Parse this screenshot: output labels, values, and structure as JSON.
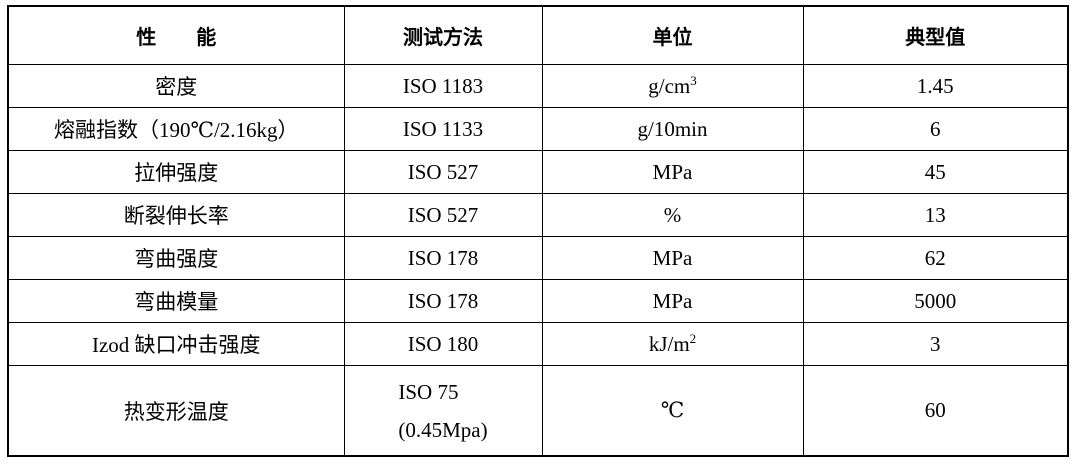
{
  "table": {
    "headers": [
      "性　　能",
      "测试方法",
      "单位",
      "典型值"
    ],
    "rows": [
      {
        "property": "密度",
        "method": "ISO 1183",
        "unit": "g/cm",
        "unit_sup": "3",
        "value": "1.45"
      },
      {
        "property": "熔融指数（190℃/2.16kg）",
        "method": "ISO 1133",
        "unit": "g/10min",
        "unit_sup": "",
        "value": "6"
      },
      {
        "property": "拉伸强度",
        "method": "ISO 527",
        "unit": "MPa",
        "unit_sup": "",
        "value": "45"
      },
      {
        "property": "断裂伸长率",
        "method": "ISO 527",
        "unit": "%",
        "unit_sup": "",
        "value": "13"
      },
      {
        "property": "弯曲强度",
        "method": "ISO 178",
        "unit": "MPa",
        "unit_sup": "",
        "value": "62"
      },
      {
        "property": "弯曲模量",
        "method": "ISO 178",
        "unit": "MPa",
        "unit_sup": "",
        "value": "5000"
      },
      {
        "property": "Izod 缺口冲击强度",
        "method": "ISO 180",
        "unit": "kJ/m",
        "unit_sup": "2",
        "value": "3"
      },
      {
        "property": "热变形温度",
        "method": "ISO 75",
        "method_line2": "(0.45Mpa)",
        "unit": "℃",
        "unit_sup": "",
        "value": "60"
      }
    ]
  }
}
